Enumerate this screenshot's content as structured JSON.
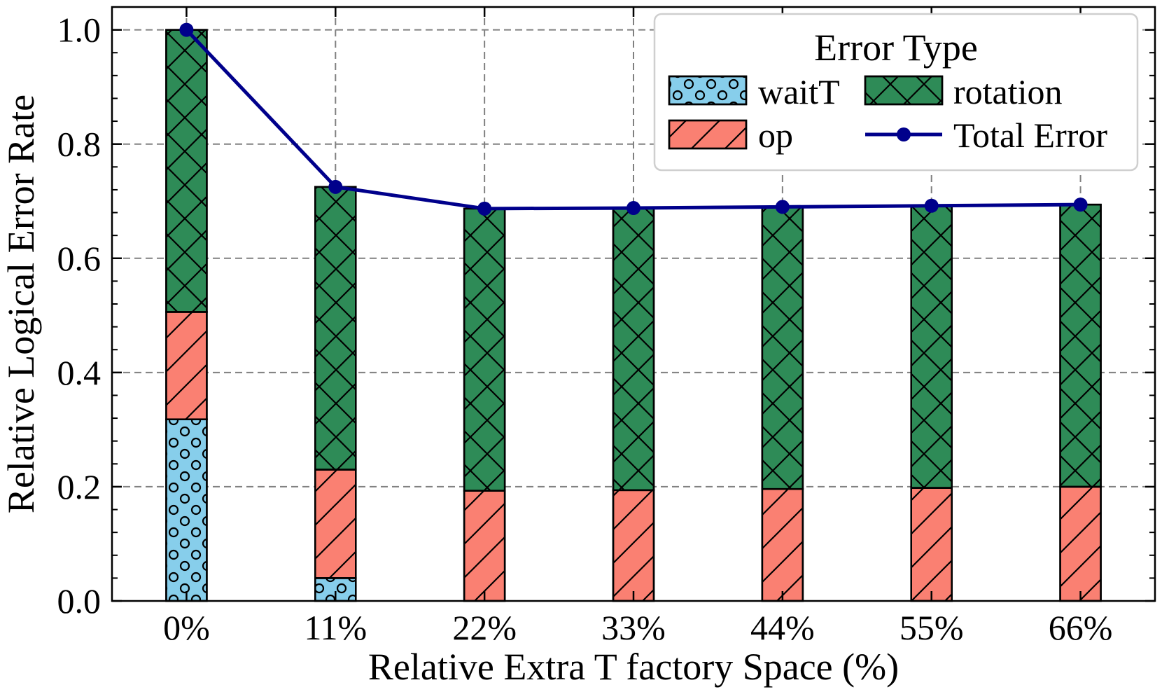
{
  "chart_data": {
    "type": "bar",
    "stacked": true,
    "title": "",
    "xlabel": "Relative Extra T factory Space (%)",
    "ylabel": "Relative Logical Error Rate",
    "categories": [
      "0%",
      "11%",
      "22%",
      "33%",
      "44%",
      "55%",
      "66%"
    ],
    "yticks": [
      0.0,
      0.2,
      0.4,
      0.6,
      0.8,
      1.0
    ],
    "ytick_labels": [
      "0.0",
      "0.2",
      "0.4",
      "0.6",
      "0.8",
      "1.0"
    ],
    "ylim": [
      0,
      1.04
    ],
    "grid": true,
    "legend": {
      "title": "Error Type",
      "position": "top-right",
      "entries": [
        "waitT",
        "rotation",
        "op",
        "Total Error"
      ]
    },
    "series": [
      {
        "name": "waitT",
        "kind": "bar",
        "values": [
          0.318,
          0.04,
          0.0,
          0.0,
          0.0,
          0.0,
          0.0
        ],
        "color": "#87ceeb",
        "pattern": "circles"
      },
      {
        "name": "op",
        "kind": "bar",
        "values": [
          0.188,
          0.19,
          0.193,
          0.194,
          0.196,
          0.198,
          0.2
        ],
        "color": "#fa8072",
        "pattern": "diagonal"
      },
      {
        "name": "rotation",
        "kind": "bar",
        "values": [
          0.494,
          0.495,
          0.494,
          0.494,
          0.494,
          0.494,
          0.494
        ],
        "color": "#2e8b57",
        "pattern": "crosshatch"
      },
      {
        "name": "Total Error",
        "kind": "line",
        "values": [
          1.0,
          0.725,
          0.687,
          0.688,
          0.69,
          0.692,
          0.694
        ],
        "color": "#00008b"
      }
    ]
  }
}
